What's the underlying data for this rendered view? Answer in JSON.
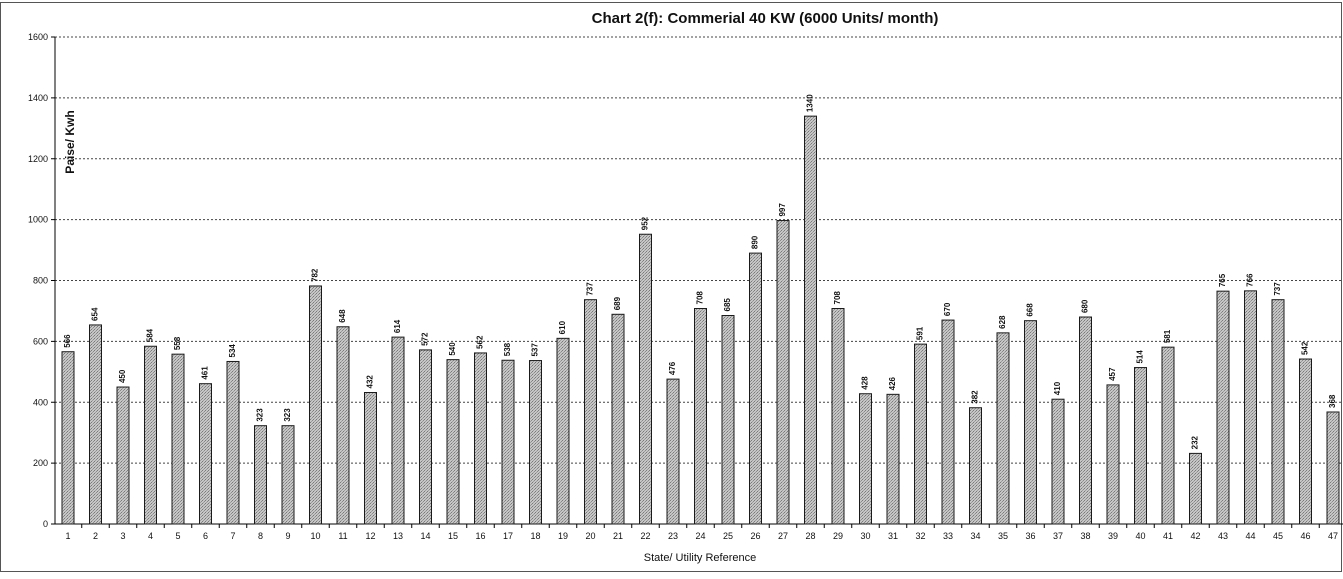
{
  "chart_data": {
    "type": "bar",
    "title": "Chart 2(f): Commerial 40 KW (6000 Units/ month)",
    "xlabel": "State/ Utility  Reference",
    "ylabel": "Paise/ Kwh",
    "ylim": [
      0,
      1600
    ],
    "yticks": [
      0,
      200,
      400,
      600,
      800,
      1000,
      1200,
      1400,
      1600
    ],
    "grid": true,
    "legend": "none",
    "bar_color": "#bdbdbd",
    "categories": [
      "1",
      "2",
      "3",
      "4",
      "5",
      "6",
      "7",
      "8",
      "9",
      "10",
      "11",
      "12",
      "13",
      "14",
      "15",
      "16",
      "17",
      "18",
      "19",
      "20",
      "21",
      "22",
      "23",
      "24",
      "25",
      "26",
      "27",
      "28",
      "29",
      "30",
      "31",
      "32",
      "33",
      "34",
      "35",
      "36",
      "37",
      "38",
      "39",
      "40",
      "41",
      "42",
      "43",
      "44",
      "45",
      "46",
      "47"
    ],
    "values": [
      566,
      654,
      450,
      584,
      558,
      461,
      534,
      323,
      323,
      782,
      648,
      432,
      614,
      572,
      540,
      562,
      538,
      537,
      610,
      737,
      689,
      952,
      476,
      708,
      685,
      890,
      997,
      1340,
      708,
      428,
      426,
      591,
      670,
      382,
      628,
      668,
      410,
      680,
      457,
      514,
      581,
      232,
      765,
      766,
      737,
      542,
      368
    ],
    "data_labels": [
      "566",
      "654",
      "450",
      "584",
      "558",
      "461",
      "534",
      "323",
      "323",
      "782",
      "648",
      "432",
      "614",
      "572",
      "540",
      "562",
      "538",
      "537",
      "610",
      "737",
      "689",
      "952",
      "476",
      "708",
      "685",
      "890",
      "997",
      "1340",
      "708",
      "428",
      "426",
      "591",
      "670",
      "382",
      "628",
      "668",
      "410",
      "680",
      "457",
      "514",
      "581",
      "232",
      "765",
      "766",
      "737",
      "542",
      "368"
    ]
  }
}
